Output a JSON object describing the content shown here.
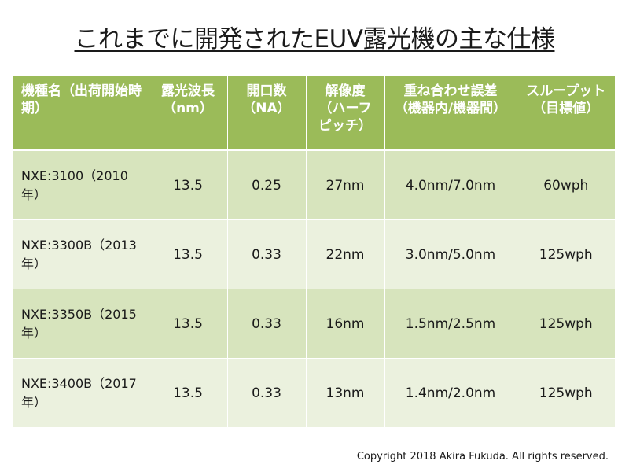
{
  "slide": {
    "title": "これまでに開発されたEUV露光機の主な仕様"
  },
  "table": {
    "headers": [
      "機種名（出荷開始時期）",
      "露光波長（nm）",
      "開口数（NA）",
      "解像度（ハーフピッチ）",
      "重ね合わせ誤差（機器内/機器間）",
      "スループット（目標値）"
    ],
    "rows": [
      [
        "NXE:3100（2010年）",
        "13.5",
        "0.25",
        "27nm",
        "4.0nm/7.0nm",
        "60wph"
      ],
      [
        "NXE:3300B（2013年）",
        "13.5",
        "0.33",
        "22nm",
        "3.0nm/5.0nm",
        "125wph"
      ],
      [
        "NXE:3350B（2015年）",
        "13.5",
        "0.33",
        "16nm",
        "1.5nm/2.5nm",
        "125wph"
      ],
      [
        "NXE:3400B（2017年）",
        "13.5",
        "0.33",
        "13nm",
        "1.4nm/2.0nm",
        "125wph"
      ]
    ],
    "colors": {
      "header_bg": "#9bbb59",
      "row_odd_bg": "#d7e4bd",
      "row_even_bg": "#ebf1de"
    }
  },
  "footer": {
    "copyright": "Copyright 2018 Akira Fukuda. All rights reserved."
  }
}
